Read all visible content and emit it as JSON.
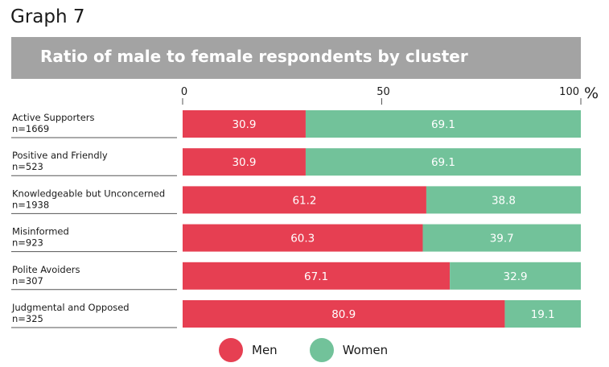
{
  "header": {
    "graph_label": "Graph 7",
    "title": "Ratio of male to female respondents by cluster"
  },
  "colors": {
    "men": "#e63f52",
    "women": "#72c29a",
    "title_bg": "#a3a3a3"
  },
  "chart_data": {
    "type": "bar",
    "orientation": "horizontal",
    "stacked": true,
    "title": "Ratio of male to female respondents by cluster",
    "unit": "%",
    "xlim": [
      0,
      100
    ],
    "xticks": [
      "0",
      "50",
      "100"
    ],
    "categories": [
      "Active Supporters",
      "Positive and Friendly",
      "Knowledgeable but Unconcerned",
      "Misinformed",
      "Polite Avoiders",
      "Judgmental and Opposed"
    ],
    "sample_sizes": [
      "n=1669",
      "n=523",
      "n=1938",
      "n=923",
      "n=307",
      "n=325"
    ],
    "series": [
      {
        "name": "Men",
        "values": [
          30.9,
          30.9,
          61.2,
          60.3,
          67.1,
          80.9
        ],
        "labels": [
          "30.9",
          "30.9",
          "61.2",
          "60.3",
          "67.1",
          "80.9"
        ]
      },
      {
        "name": "Women",
        "values": [
          69.1,
          69.1,
          38.8,
          39.7,
          32.9,
          19.1
        ],
        "labels": [
          "69.1",
          "69.1",
          "38.8",
          "39.7",
          "32.9",
          "19.1"
        ]
      }
    ],
    "legend": "bottom"
  }
}
